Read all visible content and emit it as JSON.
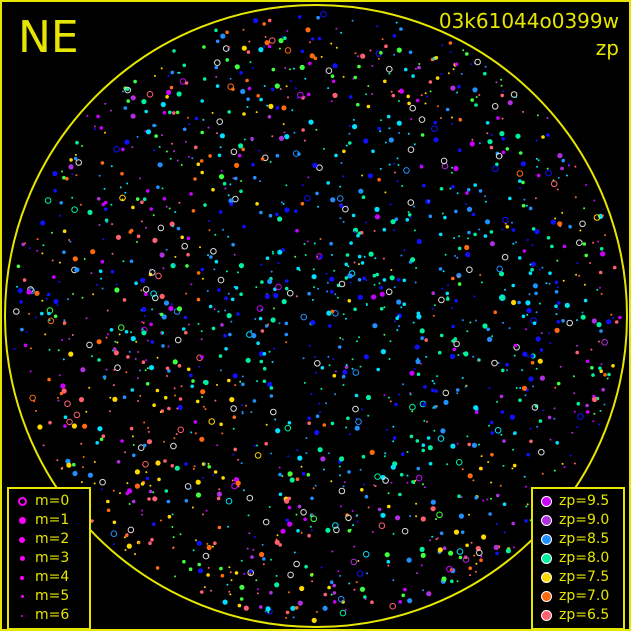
{
  "corner_label": "NE",
  "title": "03k61044o0399w",
  "subtitle": "zp",
  "colors": {
    "frame": "#e6e600",
    "horizon": "#e6e600"
  },
  "magnitude_legend": [
    {
      "label": "m=0",
      "size": 7,
      "open": true
    },
    {
      "label": "m=1",
      "size": 7
    },
    {
      "label": "m=2",
      "size": 6
    },
    {
      "label": "m=3",
      "size": 5
    },
    {
      "label": "m=4",
      "size": 4
    },
    {
      "label": "m=5",
      "size": 3
    },
    {
      "label": "m=6",
      "size": 2
    }
  ],
  "zp_legend": [
    {
      "label": "zp=9.5",
      "color": "#cc00ff"
    },
    {
      "label": "zp=9.0",
      "color": "#b030e0"
    },
    {
      "label": "zp=8.5",
      "color": "#2090ff"
    },
    {
      "label": "zp=8.0",
      "color": "#00f0a0"
    },
    {
      "label": "zp=7.5",
      "color": "#ffd800"
    },
    {
      "label": "zp=7.0",
      "color": "#ff6a10"
    },
    {
      "label": "zp=6.5",
      "color": "#ff6070"
    }
  ]
}
